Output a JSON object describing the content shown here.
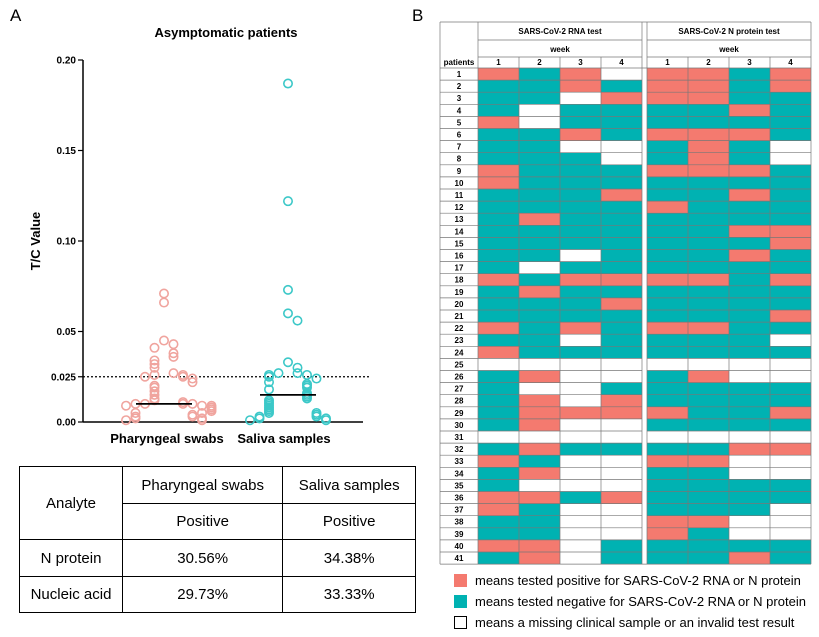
{
  "panelA": {
    "letter": "A",
    "chart_data": {
      "type": "scatter",
      "title": "Asymptomatic patients",
      "ylabel": "T/C Value",
      "ylim": [
        0,
        0.2
      ],
      "yticks": [
        "0.00",
        "0.025",
        "0.05",
        "0.10",
        "0.15",
        "0.20"
      ],
      "ytick_values": [
        0,
        0.025,
        0.05,
        0.1,
        0.15,
        0.2
      ],
      "threshold": 0.025,
      "categories": [
        "Pharyngeal swabs",
        "Saliva samples"
      ],
      "colors": [
        "#F0A49E",
        "#3CC8C8"
      ],
      "series": [
        {
          "name": "Pharyngeal swabs",
          "median": 0.01,
          "values": [
            0.071,
            0.066,
            0.045,
            0.043,
            0.041,
            0.038,
            0.036,
            0.034,
            0.032,
            0.03,
            0.027,
            0.026,
            0.026,
            0.025,
            0.025,
            0.024,
            0.022,
            0.02,
            0.019,
            0.017,
            0.015,
            0.013,
            0.012,
            0.011,
            0.01,
            0.01,
            0.01,
            0.01,
            0.009,
            0.009,
            0.009,
            0.008,
            0.007,
            0.006,
            0.005,
            0.005,
            0.004,
            0.003,
            0.003,
            0.002,
            0.002,
            0.001,
            0.001
          ]
        },
        {
          "name": "Saliva samples",
          "median": 0.015,
          "values": [
            0.187,
            0.122,
            0.073,
            0.06,
            0.056,
            0.033,
            0.03,
            0.027,
            0.027,
            0.026,
            0.026,
            0.025,
            0.024,
            0.022,
            0.021,
            0.02,
            0.019,
            0.018,
            0.016,
            0.015,
            0.014,
            0.013,
            0.012,
            0.011,
            0.01,
            0.009,
            0.008,
            0.007,
            0.006,
            0.005,
            0.005,
            0.004,
            0.003,
            0.003,
            0.002,
            0.002,
            0.001,
            0.001
          ]
        }
      ]
    },
    "table": {
      "analyte_header": "Analyte",
      "col1_header": "Pharyngeal swabs",
      "col2_header": "Saliva samples",
      "sub1": "Positive",
      "sub2": "Positive",
      "rows": [
        {
          "name": "N protein",
          "v1": "30.56%",
          "v2": "34.38%"
        },
        {
          "name": "Nucleic acid",
          "v1": "29.73%",
          "v2": "33.33%"
        }
      ]
    }
  },
  "panelB": {
    "letter": "B",
    "chart_data": {
      "type": "heatmap",
      "group_titles": [
        "SARS-CoV-2 RNA test",
        "SARS-CoV-2 N protein test"
      ],
      "week_label": "week",
      "row_header": "patients",
      "weeks": [
        "1",
        "2",
        "3",
        "4"
      ],
      "patients": [
        "1",
        "2",
        "3",
        "4",
        "5",
        "6",
        "7",
        "8",
        "9",
        "10",
        "11",
        "12",
        "13",
        "14",
        "15",
        "16",
        "17",
        "18",
        "19",
        "20",
        "21",
        "22",
        "23",
        "24",
        "25",
        "26",
        "27",
        "28",
        "29",
        "30",
        "31",
        "32",
        "33",
        "34",
        "35",
        "36",
        "37",
        "38",
        "39",
        "40",
        "41"
      ],
      "codes": {
        "P": "positive",
        "N": "negative",
        "M": "missing"
      },
      "colors": {
        "P": "#F47A6F",
        "N": "#00B2B2",
        "M": "#FFFFFF"
      },
      "rna": [
        "PNPM",
        "NNPN",
        "NNMP",
        "NMNN",
        "PMNN",
        "NNPN",
        "NNMM",
        "NNNM",
        "PNNN",
        "PNNN",
        "NNNP",
        "NNNN",
        "NPNN",
        "NNNN",
        "NNNN",
        "NNMN",
        "NMNN",
        "PNPP",
        "NPNN",
        "NNNP",
        "NNNN",
        "PNPN",
        "NNMN",
        "PNNN",
        "MMMM",
        "NPMM",
        "NMMN",
        "NPMP",
        "NPPP",
        "NPMM",
        "MMMM",
        "NPNN",
        "PNMM",
        "NPMM",
        "NMMM",
        "PPNP",
        "PNMM",
        "NNMM",
        "NNMM",
        "PPMN",
        "NPMN"
      ],
      "nprot": [
        "PPNP",
        "PPNP",
        "PPNN",
        "NNPN",
        "NNNN",
        "PPPN",
        "NPNM",
        "NPNM",
        "PPPN",
        "NNNN",
        "NNPN",
        "PNNN",
        "NNNN",
        "NNPP",
        "NNNP",
        "NNPN",
        "NNNN",
        "PPNP",
        "NNNN",
        "NNNN",
        "NNNP",
        "PPNN",
        "NNNM",
        "NNNN",
        "MMMM",
        "NPMM",
        "NNNN",
        "NNNN",
        "PNNP",
        "NNNN",
        "MMMM",
        "NNPP",
        "PPMM",
        "NNMM",
        "NNNN",
        "NNNN",
        "NNNM",
        "PPMM",
        "PNMM",
        "NNNN",
        "NNPN"
      ]
    },
    "legend": [
      {
        "code": "P",
        "text": "means tested positive for SARS-CoV-2 RNA or N protein"
      },
      {
        "code": "N",
        "text": "means tested negative for SARS-CoV-2 RNA or N protein"
      },
      {
        "code": "M",
        "text": "means a missing clinical sample or an invalid test result"
      }
    ]
  }
}
